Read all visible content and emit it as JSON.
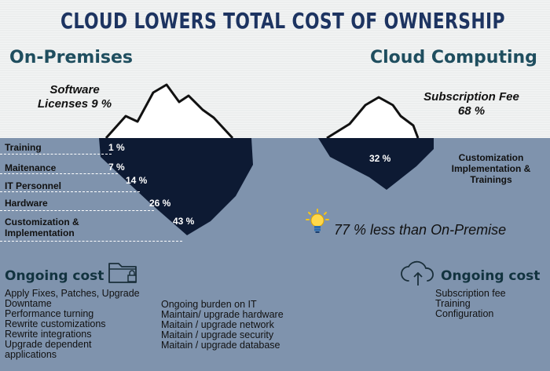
{
  "title": "CLOUD LOWERS TOTAL  COST OF OWNERSHIP",
  "left": {
    "heading": "On-Premises",
    "top_note_line1": "Software",
    "top_note_line2": "Licenses 9 %",
    "rows": [
      {
        "label": "Training",
        "pct": "1 %"
      },
      {
        "label": "Maitenance",
        "pct": "7 %"
      },
      {
        "label": "IT Personnel",
        "pct": "14 %"
      },
      {
        "label": "Hardware",
        "pct": "26 %"
      },
      {
        "label_line1": "Customization &",
        "label_line2": "Implementation",
        "pct": "43 %"
      }
    ]
  },
  "right": {
    "heading": "Cloud Computing",
    "top_note_line1": "Subscription Fee",
    "top_note_line2": "68 %",
    "under_pct": "32 %",
    "under_note_line1": "Customization",
    "under_note_line2": "Implementation &",
    "under_note_line3": "Trainings"
  },
  "savings": "77 % less than On-Premise",
  "ongoing_left": {
    "heading": "Ongoing cost",
    "col1": [
      "Apply Fixes, Patches, Upgrade",
      "Downtame",
      "Performance turning",
      "Rewrite customizations",
      "Rewrite integrations",
      "Upgrade dependent",
      "applications"
    ],
    "col2": [
      "Ongoing burden on IT",
      "Maintain/ upgrade hardware",
      "Maitain / upgrade network",
      "Maitain / upgrade security",
      "Maitain / upgrade database"
    ]
  },
  "ongoing_right": {
    "heading": "Ongoing cost",
    "items": [
      "Subscription fee",
      "Training",
      "Configuration"
    ]
  },
  "colors": {
    "sky": "#eceeee",
    "sea": "#7f93ad",
    "ice_dark": "#0d1a33",
    "title": "#1d3461",
    "heading": "#1f4e5f"
  },
  "icons": [
    "lightbulb-icon",
    "folder-lock-icon",
    "cloud-upload-icon"
  ]
}
